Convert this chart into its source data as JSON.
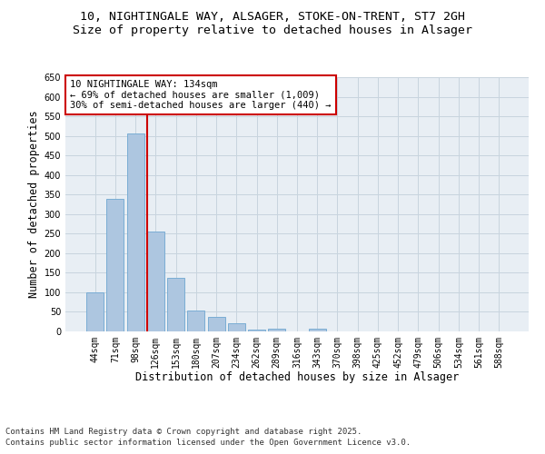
{
  "title_line1": "10, NIGHTINGALE WAY, ALSAGER, STOKE-ON-TRENT, ST7 2GH",
  "title_line2": "Size of property relative to detached houses in Alsager",
  "xlabel": "Distribution of detached houses by size in Alsager",
  "ylabel": "Number of detached properties",
  "categories": [
    "44sqm",
    "71sqm",
    "98sqm",
    "126sqm",
    "153sqm",
    "180sqm",
    "207sqm",
    "234sqm",
    "262sqm",
    "289sqm",
    "316sqm",
    "343sqm",
    "370sqm",
    "398sqm",
    "425sqm",
    "452sqm",
    "479sqm",
    "506sqm",
    "534sqm",
    "561sqm",
    "588sqm"
  ],
  "values": [
    100,
    338,
    505,
    255,
    138,
    53,
    38,
    22,
    5,
    8,
    0,
    8,
    0,
    0,
    0,
    0,
    0,
    0,
    0,
    0,
    0
  ],
  "bar_color": "#adc6e0",
  "bar_edge_color": "#7aadd4",
  "highlight_bar_index": 3,
  "highlight_line_color": "#cc0000",
  "annotation_text": "10 NIGHTINGALE WAY: 134sqm\n← 69% of detached houses are smaller (1,009)\n30% of semi-detached houses are larger (440) →",
  "annotation_box_color": "#cc0000",
  "ylim": [
    0,
    650
  ],
  "yticks": [
    0,
    50,
    100,
    150,
    200,
    250,
    300,
    350,
    400,
    450,
    500,
    550,
    600,
    650
  ],
  "background_color": "#e8eef4",
  "grid_color": "#c8d4de",
  "footer_line1": "Contains HM Land Registry data © Crown copyright and database right 2025.",
  "footer_line2": "Contains public sector information licensed under the Open Government Licence v3.0.",
  "title_fontsize": 9.5,
  "subtitle_fontsize": 9.5,
  "tick_fontsize": 7,
  "xlabel_fontsize": 8.5,
  "ylabel_fontsize": 8.5,
  "footer_fontsize": 6.5,
  "annot_fontsize": 7.5
}
